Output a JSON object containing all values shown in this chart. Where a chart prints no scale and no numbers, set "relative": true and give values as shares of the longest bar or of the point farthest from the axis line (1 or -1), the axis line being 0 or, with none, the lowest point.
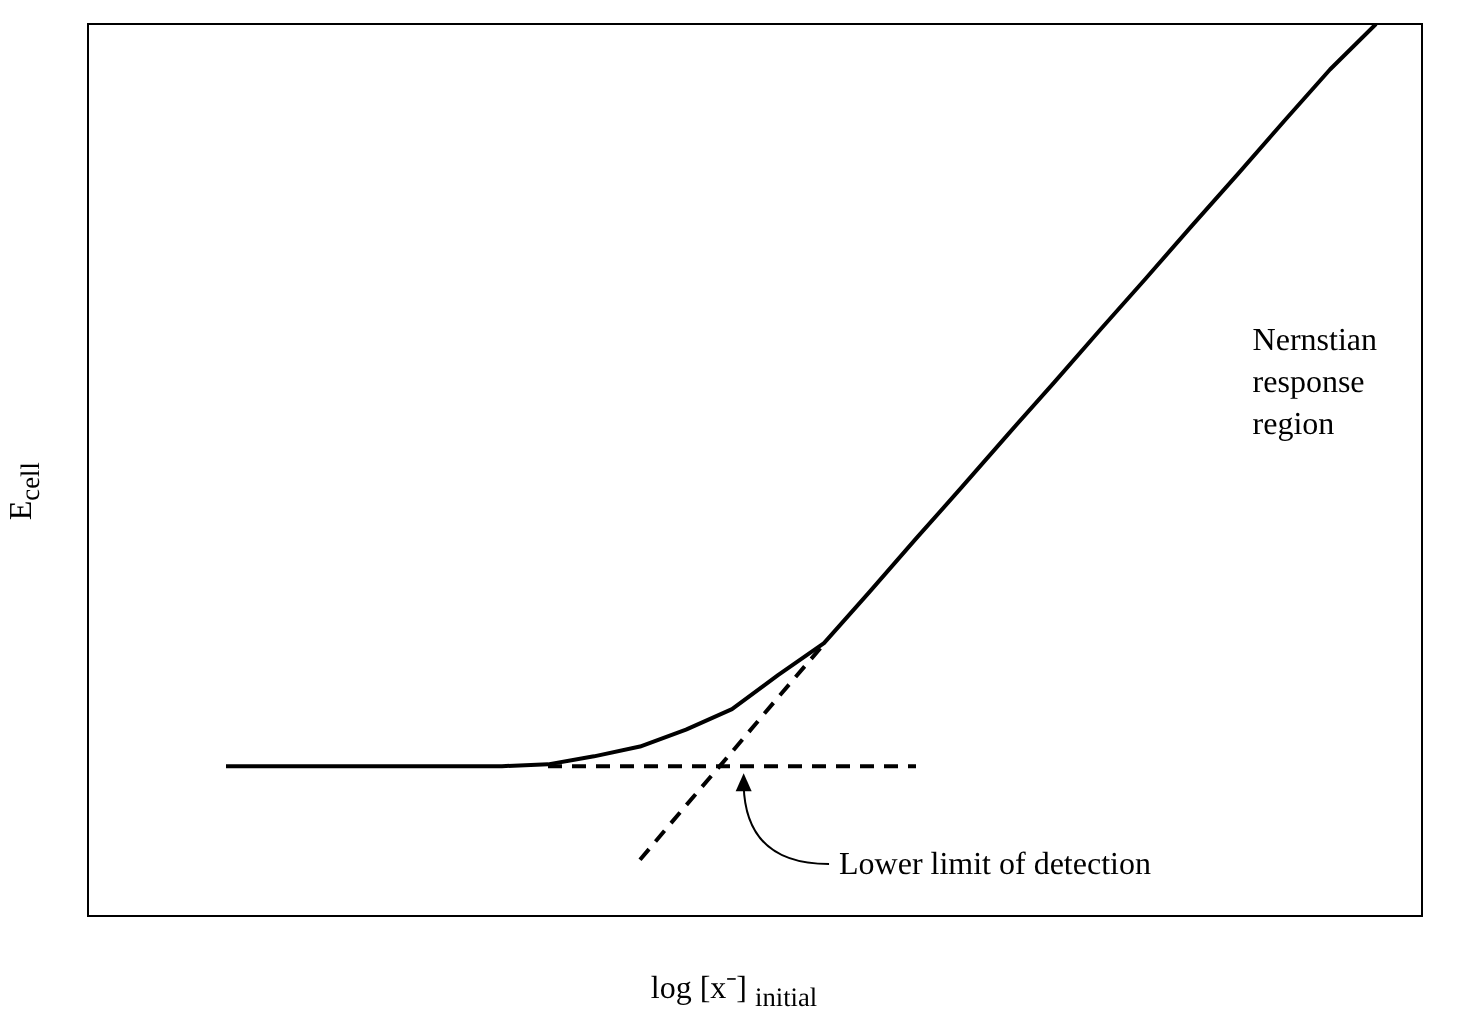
{
  "chart_data": {
    "type": "line",
    "relative": true,
    "xlabel": "log [x⁻] $_{initial}$",
    "ylabel": "E$_{cell}$",
    "grid": false,
    "legend": false,
    "marker": "none",
    "categories": [
      null,
      null,
      null,
      null,
      null,
      null,
      null,
      null,
      null,
      null,
      null,
      null,
      null,
      null,
      null,
      null,
      null,
      null,
      null,
      null,
      null,
      null,
      null,
      null,
      null,
      null,
      null,
      null,
      null,
      null
    ],
    "series": [
      {
        "color": "#000000",
        "line_style": "solid",
        "values": [
          null,
          null,
          null,
          0.168,
          0.168,
          0.168,
          0.168,
          0.168,
          0.168,
          0.168,
          0.17,
          0.179,
          0.19,
          0.209,
          0.232,
          0.27,
          0.306,
          0.364,
          0.423,
          0.481,
          0.54,
          0.598,
          0.657,
          0.715,
          0.774,
          0.832,
          0.891,
          0.949,
          1,
          null
        ]
      },
      {
        "color": "#000000",
        "line_style": "dashed",
        "values": [
          null,
          null,
          null,
          null,
          null,
          null,
          null,
          null,
          null,
          null,
          0.168,
          0.168,
          0.168,
          0.168,
          0.168,
          0.168,
          0.168,
          0.168,
          0.168,
          null,
          null,
          null,
          null,
          null,
          null,
          null,
          null,
          null,
          null,
          null
        ]
      },
      {
        "color": "#000000",
        "line_style": "dashed",
        "values": [
          null,
          null,
          null,
          null,
          null,
          null,
          null,
          null,
          null,
          null,
          null,
          null,
          0.063,
          0.124,
          0.184,
          0.245,
          0.305,
          null,
          null,
          null,
          null,
          null,
          null,
          null,
          null,
          null,
          null,
          null,
          null,
          null
        ]
      }
    ],
    "annotations": [
      "Nernstian response region",
      "Lower limit of detection"
    ]
  }
}
